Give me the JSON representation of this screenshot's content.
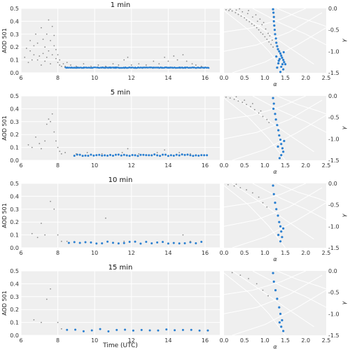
{
  "chart_data": {
    "type": "scatter",
    "xlabel": "Time (UTC)",
    "ylabel": "AOD 501",
    "right_xlabel": "α",
    "right_ylabel": "γ",
    "time_xlim": [
      6,
      16.8
    ],
    "time_xticks": [
      "6",
      "8",
      "10",
      "12",
      "14",
      "16"
    ],
    "aod_ylim": [
      0,
      0.5
    ],
    "aod_yticks": [
      "0.0",
      "0.1",
      "0.2",
      "0.3",
      "0.4",
      "0.5"
    ],
    "alpha_xlim": [
      0,
      2.5
    ],
    "alpha_xticks": [
      "0.0",
      "0.5",
      "1.0",
      "1.5",
      "2.0",
      "2.5"
    ],
    "gamma_ylim": [
      -1.5,
      0
    ],
    "gamma_yticks": [
      "0.0",
      "-0.5",
      "-1.0",
      "-1.5"
    ],
    "grid": true,
    "colors": {
      "selected": "#2a7fd0",
      "rejected": "#8c8c8c",
      "panel_bg": "#efefef",
      "grid": "#ffffff"
    },
    "series_colors": [
      "selected",
      "rejected"
    ],
    "panels": [
      {
        "title": "1 min",
        "rejected_time": [
          [
            6.2,
            0.12
          ],
          [
            6.3,
            0.19
          ],
          [
            6.4,
            0.08
          ],
          [
            6.5,
            0.17
          ],
          [
            6.5,
            0.25
          ],
          [
            6.6,
            0.1
          ],
          [
            6.7,
            0.21
          ],
          [
            6.7,
            0.14
          ],
          [
            6.8,
            0.3
          ],
          [
            6.9,
            0.1
          ],
          [
            6.9,
            0.23
          ],
          [
            7.0,
            0.13
          ],
          [
            7.1,
            0.06
          ],
          [
            7.1,
            0.35
          ],
          [
            7.2,
            0.15
          ],
          [
            7.2,
            0.26
          ],
          [
            7.3,
            0.09
          ],
          [
            7.3,
            0.2
          ],
          [
            7.4,
            0.12
          ],
          [
            7.4,
            0.3
          ],
          [
            7.5,
            0.17
          ],
          [
            7.5,
            0.41
          ],
          [
            7.6,
            0.25
          ],
          [
            7.6,
            0.07
          ],
          [
            7.7,
            0.14
          ],
          [
            7.7,
            0.36
          ],
          [
            7.8,
            0.29
          ],
          [
            7.8,
            0.21
          ],
          [
            7.9,
            0.11
          ],
          [
            7.9,
            0.18
          ],
          [
            8.0,
            0.08
          ],
          [
            8.0,
            0.14
          ],
          [
            8.1,
            0.06
          ],
          [
            8.1,
            0.1
          ],
          [
            8.2,
            0.05
          ],
          [
            8.3,
            0.07
          ],
          [
            8.4,
            0.05
          ],
          [
            8.5,
            0.08
          ],
          [
            8.7,
            0.06
          ],
          [
            9.0,
            0.05
          ],
          [
            9.4,
            0.07
          ],
          [
            9.8,
            0.05
          ],
          [
            10.2,
            0.06
          ],
          [
            10.6,
            0.05
          ],
          [
            11.0,
            0.07
          ],
          [
            11.3,
            0.06
          ],
          [
            11.6,
            0.1
          ],
          [
            11.8,
            0.12
          ],
          [
            12.0,
            0.06
          ],
          [
            12.4,
            0.07
          ],
          [
            12.8,
            0.06
          ],
          [
            13.2,
            0.09
          ],
          [
            13.5,
            0.07
          ],
          [
            13.8,
            0.12
          ],
          [
            14.0,
            0.09
          ],
          [
            14.3,
            0.13
          ],
          [
            14.5,
            0.1
          ],
          [
            14.8,
            0.14
          ],
          [
            15.0,
            0.09
          ],
          [
            15.3,
            0.07
          ],
          [
            15.5,
            0.06
          ],
          [
            15.8,
            0.05
          ]
        ],
        "selected_time_segments": [
          [
            8.4,
            16.2,
            0.04,
            0.003
          ]
        ],
        "rejected_ag": [
          [
            0.05,
            -0.03
          ],
          [
            0.12,
            -0.05
          ],
          [
            0.2,
            -0.06
          ],
          [
            0.28,
            -0.1
          ],
          [
            0.35,
            -0.14
          ],
          [
            0.42,
            -0.18
          ],
          [
            0.5,
            -0.22
          ],
          [
            0.55,
            -0.27
          ],
          [
            0.62,
            -0.31
          ],
          [
            0.68,
            -0.36
          ],
          [
            0.74,
            -0.4
          ],
          [
            0.8,
            -0.45
          ],
          [
            0.85,
            -0.5
          ],
          [
            0.9,
            -0.56
          ],
          [
            0.95,
            -0.6
          ],
          [
            1.0,
            -0.66
          ],
          [
            1.05,
            -0.72
          ],
          [
            1.1,
            -0.78
          ],
          [
            1.15,
            -0.84
          ],
          [
            1.2,
            -0.9
          ],
          [
            0.3,
            -0.04
          ],
          [
            0.45,
            -0.08
          ],
          [
            0.58,
            -0.12
          ],
          [
            0.7,
            -0.2
          ],
          [
            0.82,
            -0.3
          ],
          [
            0.93,
            -0.38
          ],
          [
            1.02,
            -0.48
          ],
          [
            1.08,
            -0.58
          ],
          [
            0.15,
            -0.02
          ],
          [
            0.38,
            -0.01
          ],
          [
            0.6,
            -0.05
          ],
          [
            0.78,
            -0.15
          ],
          [
            0.88,
            -0.25
          ],
          [
            0.97,
            -0.33
          ],
          [
            1.12,
            -0.64
          ],
          [
            1.18,
            -0.74
          ]
        ],
        "selected_ag": [
          [
            1.2,
            -0.02
          ],
          [
            1.21,
            -0.1
          ],
          [
            1.22,
            -0.2
          ],
          [
            1.22,
            -0.3
          ],
          [
            1.23,
            -0.4
          ],
          [
            1.24,
            -0.5
          ],
          [
            1.25,
            -0.6
          ],
          [
            1.27,
            -0.7
          ],
          [
            1.28,
            -0.8
          ],
          [
            1.3,
            -0.88
          ],
          [
            1.32,
            -0.95
          ],
          [
            1.35,
            -1.0
          ],
          [
            1.38,
            -1.05
          ],
          [
            1.4,
            -1.1
          ],
          [
            1.42,
            -1.15
          ],
          [
            1.45,
            -1.2
          ],
          [
            1.47,
            -1.25
          ],
          [
            1.43,
            -1.3
          ],
          [
            1.4,
            -1.36
          ],
          [
            1.45,
            -1.42
          ],
          [
            1.36,
            -1.18
          ],
          [
            1.33,
            -1.28
          ],
          [
            1.3,
            -1.38
          ],
          [
            1.28,
            -1.12
          ],
          [
            1.38,
            -1.48
          ],
          [
            1.46,
            -1.02
          ],
          [
            1.5,
            -1.3
          ],
          [
            1.34,
            -1.22
          ]
        ]
      },
      {
        "title": "5 min",
        "rejected_time": [
          [
            6.4,
            0.12
          ],
          [
            6.6,
            0.1
          ],
          [
            6.8,
            0.18
          ],
          [
            7.0,
            0.13
          ],
          [
            7.1,
            0.09
          ],
          [
            7.3,
            0.15
          ],
          [
            7.4,
            0.28
          ],
          [
            7.5,
            0.32
          ],
          [
            7.6,
            0.3
          ],
          [
            7.7,
            0.36
          ],
          [
            7.8,
            0.22
          ],
          [
            7.9,
            0.15
          ],
          [
            8.0,
            0.1
          ],
          [
            8.1,
            0.07
          ],
          [
            8.2,
            0.05
          ],
          [
            8.4,
            0.06
          ],
          [
            9.0,
            0.05
          ],
          [
            9.6,
            0.06
          ],
          [
            10.4,
            0.05
          ],
          [
            11.5,
            0.06
          ],
          [
            11.8,
            0.09
          ],
          [
            12.4,
            0.05
          ],
          [
            13.4,
            0.06
          ],
          [
            13.8,
            0.08
          ],
          [
            14.6,
            0.06
          ],
          [
            15.2,
            0.05
          ]
        ],
        "selected_time_segments": [
          [
            8.9,
            16.2,
            0.04,
            0.006
          ]
        ],
        "rejected_ag": [
          [
            0.05,
            -0.03
          ],
          [
            0.15,
            -0.05
          ],
          [
            0.25,
            -0.08
          ],
          [
            0.35,
            -0.12
          ],
          [
            0.45,
            -0.15
          ],
          [
            0.55,
            -0.2
          ],
          [
            0.65,
            -0.25
          ],
          [
            0.75,
            -0.32
          ],
          [
            0.85,
            -0.4
          ],
          [
            0.95,
            -0.48
          ],
          [
            1.05,
            -0.55
          ],
          [
            1.1,
            -0.62
          ],
          [
            0.5,
            -0.1
          ],
          [
            0.7,
            -0.18
          ],
          [
            0.9,
            -0.35
          ],
          [
            0.3,
            -0.02
          ]
        ],
        "selected_ag": [
          [
            1.2,
            -0.05
          ],
          [
            1.22,
            -0.18
          ],
          [
            1.21,
            -0.3
          ],
          [
            1.25,
            -0.42
          ],
          [
            1.27,
            -0.55
          ],
          [
            1.3,
            -0.68
          ],
          [
            1.33,
            -0.8
          ],
          [
            1.35,
            -0.92
          ],
          [
            1.38,
            -1.02
          ],
          [
            1.4,
            -1.12
          ],
          [
            1.43,
            -1.22
          ],
          [
            1.45,
            -1.3
          ],
          [
            1.4,
            -1.38
          ],
          [
            1.36,
            -1.45
          ],
          [
            1.32,
            -1.18
          ],
          [
            1.47,
            -1.05
          ]
        ]
      },
      {
        "title": "10 min",
        "rejected_time": [
          [
            6.6,
            0.11
          ],
          [
            6.9,
            0.08
          ],
          [
            7.1,
            0.19
          ],
          [
            7.3,
            0.1
          ],
          [
            7.6,
            0.36
          ],
          [
            7.8,
            0.3
          ],
          [
            8.0,
            0.1
          ],
          [
            8.2,
            0.05
          ],
          [
            8.5,
            0.05
          ],
          [
            10.6,
            0.23
          ],
          [
            11.6,
            0.05
          ],
          [
            14.8,
            0.1
          ],
          [
            15.2,
            0.05
          ]
        ],
        "selected_time_segments": [
          [
            8.6,
            16.0,
            0.04,
            0.008
          ]
        ],
        "rejected_ag": [
          [
            0.1,
            -0.03
          ],
          [
            0.25,
            -0.06
          ],
          [
            0.4,
            -0.1
          ],
          [
            0.55,
            -0.15
          ],
          [
            0.7,
            -0.22
          ],
          [
            0.85,
            -0.32
          ],
          [
            0.95,
            -0.45
          ],
          [
            1.05,
            -0.55
          ],
          [
            0.3,
            -0.02
          ]
        ],
        "selected_ag": [
          [
            1.2,
            -0.05
          ],
          [
            1.22,
            -0.25
          ],
          [
            1.25,
            -0.45
          ],
          [
            1.28,
            -0.6
          ],
          [
            1.32,
            -0.75
          ],
          [
            1.35,
            -0.9
          ],
          [
            1.38,
            -1.0
          ],
          [
            1.4,
            -1.12
          ],
          [
            1.42,
            -1.25
          ],
          [
            1.38,
            -1.35
          ],
          [
            1.33,
            -1.2
          ],
          [
            1.45,
            -1.05
          ]
        ]
      },
      {
        "title": "15 min",
        "rejected_time": [
          [
            6.7,
            0.12
          ],
          [
            7.1,
            0.1
          ],
          [
            7.4,
            0.28
          ],
          [
            7.6,
            0.36
          ],
          [
            8.0,
            0.1
          ],
          [
            8.2,
            0.05
          ]
        ],
        "selected_time_segments": [
          [
            8.5,
            16.2,
            0.04,
            0.01
          ]
        ],
        "rejected_ag": [
          [
            0.2,
            -0.04
          ],
          [
            0.4,
            -0.1
          ],
          [
            0.6,
            -0.18
          ],
          [
            0.8,
            -0.3
          ],
          [
            0.95,
            -0.45
          ],
          [
            1.08,
            -0.58
          ]
        ],
        "selected_ag": [
          [
            1.2,
            -0.05
          ],
          [
            1.22,
            -0.25
          ],
          [
            1.26,
            -0.45
          ],
          [
            1.3,
            -0.65
          ],
          [
            1.35,
            -0.85
          ],
          [
            1.38,
            -1.0
          ],
          [
            1.42,
            -1.15
          ],
          [
            1.4,
            -1.3
          ],
          [
            1.45,
            -1.4
          ],
          [
            1.36,
            -1.2
          ]
        ]
      }
    ]
  }
}
